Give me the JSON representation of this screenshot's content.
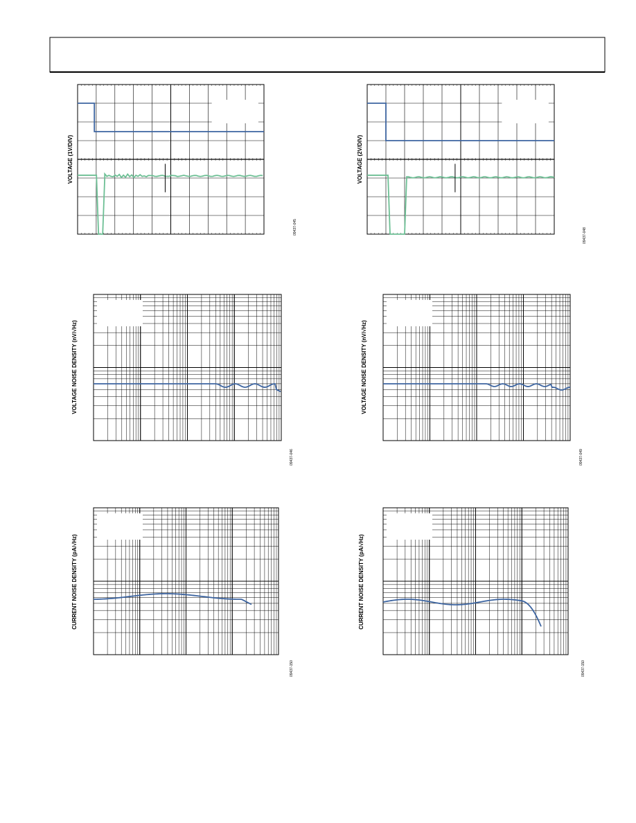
{
  "figures": [
    {
      "y_label": "VOLTAGE (1V/DIV)",
      "figure_id": "09437-045"
    },
    {
      "y_label": "VOLTAGE (2V/DIV)",
      "figure_id": "09437-048"
    },
    {
      "y_label": "VOLTAGE NOISE DENSITY (nV/√Hz)",
      "figure_id": "09437-046"
    },
    {
      "y_label": "VOLTAGE NOISE DENSITY (nV/√Hz)",
      "figure_id": "09437-049"
    },
    {
      "y_label": "CURRENT NOISE DENSITY (pA/√Hz)",
      "figure_id": "09437-150"
    },
    {
      "y_label": "CURRENT NOISE DENSITY (pA/√Hz)",
      "figure_id": "09437-150"
    }
  ]
}
